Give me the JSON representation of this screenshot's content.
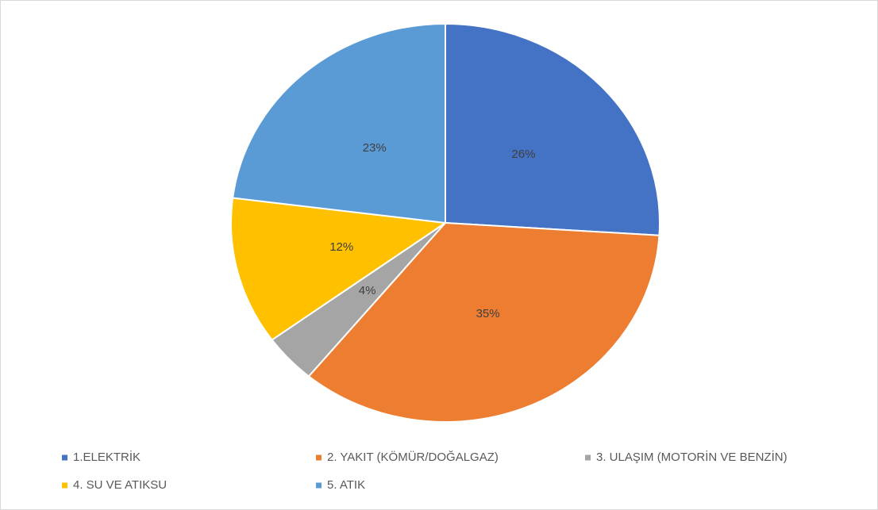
{
  "chart_data": {
    "type": "pie",
    "categories": [
      "1.ELEKTRİK",
      "2. YAKIT (KÖMÜR/DOĞALGAZ)",
      "3. ULAŞIM (MOTORİN VE BENZİN)",
      "4. SU VE ATIKSU",
      "5. ATIK"
    ],
    "values": [
      26,
      35,
      4,
      12,
      23
    ],
    "value_labels": [
      "26%",
      "35%",
      "4%",
      "12%",
      "23%"
    ],
    "colors": [
      "#4472c4",
      "#ed7d31",
      "#a5a5a5",
      "#ffc000",
      "#5b9bd5"
    ],
    "legend": "bottom"
  }
}
